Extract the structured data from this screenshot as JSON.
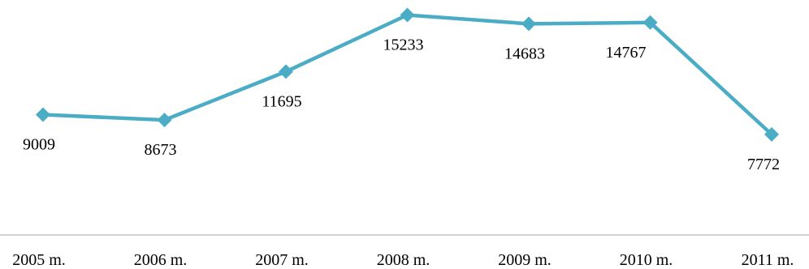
{
  "chart_data": {
    "type": "line",
    "categories": [
      "2005 m.",
      "2006 m.",
      "2007 m.",
      "2008 m.",
      "2009 m.",
      "2010 m.",
      "2011 m."
    ],
    "series": [
      {
        "values": [
          9009,
          8673,
          11695,
          15233,
          14683,
          14767,
          7772
        ]
      }
    ],
    "data_labels": [
      "9009",
      "8673",
      "11695",
      "15233",
      "14683",
      "14767",
      "7772"
    ],
    "line_color": "#4bacc6",
    "axis_color": "#a6a6a6",
    "ylim": [
      0,
      16000
    ],
    "grid": false,
    "legend": "none"
  }
}
